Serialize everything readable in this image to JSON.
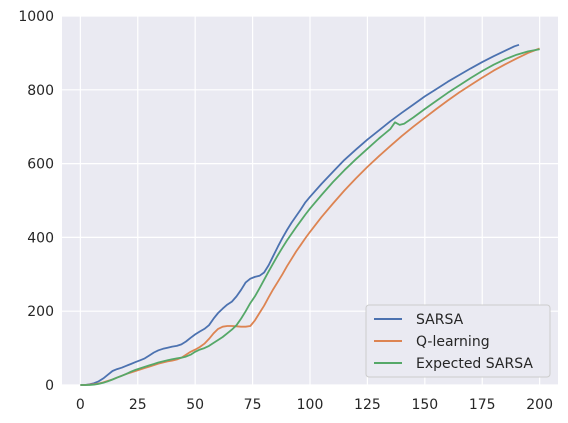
{
  "chart_data": {
    "type": "line",
    "title": "",
    "xlabel": "",
    "ylabel": "",
    "xlim": [
      -8,
      208
    ],
    "ylim": [
      0,
      1000
    ],
    "xticks": [
      0,
      25,
      50,
      75,
      100,
      125,
      150,
      175,
      200
    ],
    "yticks": [
      0,
      200,
      400,
      600,
      800,
      1000
    ],
    "grid": true,
    "legend_position": "lower-right",
    "background": "#eaeaf2",
    "series": [
      {
        "name": "SARSA",
        "color": "#4c72b0",
        "points": [
          [
            0,
            0
          ],
          [
            2,
            0
          ],
          [
            4,
            2
          ],
          [
            6,
            5
          ],
          [
            8,
            10
          ],
          [
            10,
            18
          ],
          [
            12,
            28
          ],
          [
            14,
            38
          ],
          [
            16,
            43
          ],
          [
            18,
            47
          ],
          [
            20,
            52
          ],
          [
            22,
            57
          ],
          [
            24,
            62
          ],
          [
            26,
            67
          ],
          [
            28,
            72
          ],
          [
            30,
            80
          ],
          [
            32,
            88
          ],
          [
            34,
            94
          ],
          [
            36,
            98
          ],
          [
            38,
            101
          ],
          [
            40,
            104
          ],
          [
            42,
            106
          ],
          [
            44,
            110
          ],
          [
            46,
            118
          ],
          [
            48,
            128
          ],
          [
            50,
            137
          ],
          [
            52,
            145
          ],
          [
            54,
            152
          ],
          [
            56,
            162
          ],
          [
            58,
            180
          ],
          [
            60,
            195
          ],
          [
            62,
            207
          ],
          [
            64,
            218
          ],
          [
            66,
            226
          ],
          [
            68,
            240
          ],
          [
            70,
            258
          ],
          [
            72,
            278
          ],
          [
            74,
            288
          ],
          [
            76,
            293
          ],
          [
            78,
            296
          ],
          [
            80,
            305
          ],
          [
            82,
            325
          ],
          [
            84,
            350
          ],
          [
            86,
            375
          ],
          [
            88,
            398
          ],
          [
            90,
            420
          ],
          [
            92,
            440
          ],
          [
            94,
            458
          ],
          [
            96,
            476
          ],
          [
            98,
            495
          ],
          [
            100,
            510
          ],
          [
            105,
            545
          ],
          [
            110,
            578
          ],
          [
            115,
            610
          ],
          [
            120,
            638
          ],
          [
            125,
            665
          ],
          [
            130,
            690
          ],
          [
            135,
            715
          ],
          [
            140,
            738
          ],
          [
            145,
            760
          ],
          [
            150,
            782
          ],
          [
            155,
            802
          ],
          [
            160,
            822
          ],
          [
            165,
            840
          ],
          [
            170,
            858
          ],
          [
            175,
            875
          ],
          [
            180,
            891
          ],
          [
            185,
            906
          ],
          [
            189,
            918
          ],
          [
            191,
            922
          ]
        ]
      },
      {
        "name": "Q-learning",
        "color": "#dd8452",
        "points": [
          [
            0,
            0
          ],
          [
            2,
            0
          ],
          [
            4,
            1
          ],
          [
            6,
            2
          ],
          [
            8,
            4
          ],
          [
            10,
            7
          ],
          [
            12,
            11
          ],
          [
            14,
            15
          ],
          [
            16,
            20
          ],
          [
            18,
            25
          ],
          [
            20,
            30
          ],
          [
            22,
            34
          ],
          [
            24,
            38
          ],
          [
            26,
            42
          ],
          [
            28,
            46
          ],
          [
            30,
            50
          ],
          [
            32,
            54
          ],
          [
            34,
            58
          ],
          [
            36,
            61
          ],
          [
            38,
            64
          ],
          [
            40,
            66
          ],
          [
            42,
            69
          ],
          [
            44,
            74
          ],
          [
            46,
            82
          ],
          [
            48,
            90
          ],
          [
            50,
            96
          ],
          [
            52,
            103
          ],
          [
            54,
            112
          ],
          [
            56,
            125
          ],
          [
            58,
            140
          ],
          [
            60,
            152
          ],
          [
            62,
            158
          ],
          [
            64,
            160
          ],
          [
            66,
            160
          ],
          [
            68,
            159
          ],
          [
            70,
            158
          ],
          [
            72,
            158
          ],
          [
            74,
            160
          ],
          [
            76,
            175
          ],
          [
            78,
            195
          ],
          [
            80,
            215
          ],
          [
            82,
            238
          ],
          [
            84,
            260
          ],
          [
            86,
            280
          ],
          [
            88,
            300
          ],
          [
            90,
            322
          ],
          [
            92,
            342
          ],
          [
            94,
            362
          ],
          [
            96,
            380
          ],
          [
            98,
            398
          ],
          [
            100,
            415
          ],
          [
            105,
            455
          ],
          [
            110,
            492
          ],
          [
            115,
            527
          ],
          [
            120,
            560
          ],
          [
            125,
            591
          ],
          [
            130,
            620
          ],
          [
            135,
            648
          ],
          [
            140,
            675
          ],
          [
            145,
            700
          ],
          [
            150,
            724
          ],
          [
            155,
            748
          ],
          [
            160,
            771
          ],
          [
            165,
            793
          ],
          [
            170,
            813
          ],
          [
            175,
            833
          ],
          [
            180,
            852
          ],
          [
            185,
            869
          ],
          [
            190,
            885
          ],
          [
            195,
            900
          ],
          [
            200,
            912
          ]
        ]
      },
      {
        "name": "Expected SARSA",
        "color": "#55a868",
        "points": [
          [
            0,
            0
          ],
          [
            2,
            0
          ],
          [
            4,
            0
          ],
          [
            6,
            1
          ],
          [
            8,
            3
          ],
          [
            10,
            6
          ],
          [
            12,
            10
          ],
          [
            14,
            15
          ],
          [
            16,
            20
          ],
          [
            18,
            25
          ],
          [
            20,
            30
          ],
          [
            22,
            36
          ],
          [
            24,
            41
          ],
          [
            26,
            45
          ],
          [
            28,
            49
          ],
          [
            30,
            53
          ],
          [
            32,
            57
          ],
          [
            34,
            61
          ],
          [
            36,
            64
          ],
          [
            38,
            67
          ],
          [
            40,
            70
          ],
          [
            42,
            72
          ],
          [
            44,
            74
          ],
          [
            46,
            77
          ],
          [
            48,
            82
          ],
          [
            50,
            90
          ],
          [
            52,
            96
          ],
          [
            54,
            100
          ],
          [
            56,
            106
          ],
          [
            58,
            114
          ],
          [
            60,
            122
          ],
          [
            62,
            130
          ],
          [
            64,
            140
          ],
          [
            66,
            150
          ],
          [
            68,
            162
          ],
          [
            70,
            180
          ],
          [
            72,
            200
          ],
          [
            74,
            222
          ],
          [
            76,
            240
          ],
          [
            78,
            262
          ],
          [
            80,
            285
          ],
          [
            82,
            308
          ],
          [
            84,
            330
          ],
          [
            86,
            352
          ],
          [
            88,
            372
          ],
          [
            90,
            392
          ],
          [
            92,
            410
          ],
          [
            94,
            428
          ],
          [
            96,
            445
          ],
          [
            98,
            462
          ],
          [
            100,
            478
          ],
          [
            105,
            515
          ],
          [
            110,
            550
          ],
          [
            115,
            582
          ],
          [
            120,
            612
          ],
          [
            125,
            640
          ],
          [
            130,
            668
          ],
          [
            135,
            694
          ],
          [
            137,
            712
          ],
          [
            139,
            705
          ],
          [
            141,
            708
          ],
          [
            145,
            725
          ],
          [
            150,
            748
          ],
          [
            155,
            770
          ],
          [
            160,
            792
          ],
          [
            165,
            812
          ],
          [
            170,
            832
          ],
          [
            175,
            851
          ],
          [
            180,
            868
          ],
          [
            185,
            883
          ],
          [
            190,
            895
          ],
          [
            195,
            904
          ],
          [
            200,
            910
          ]
        ]
      }
    ]
  }
}
